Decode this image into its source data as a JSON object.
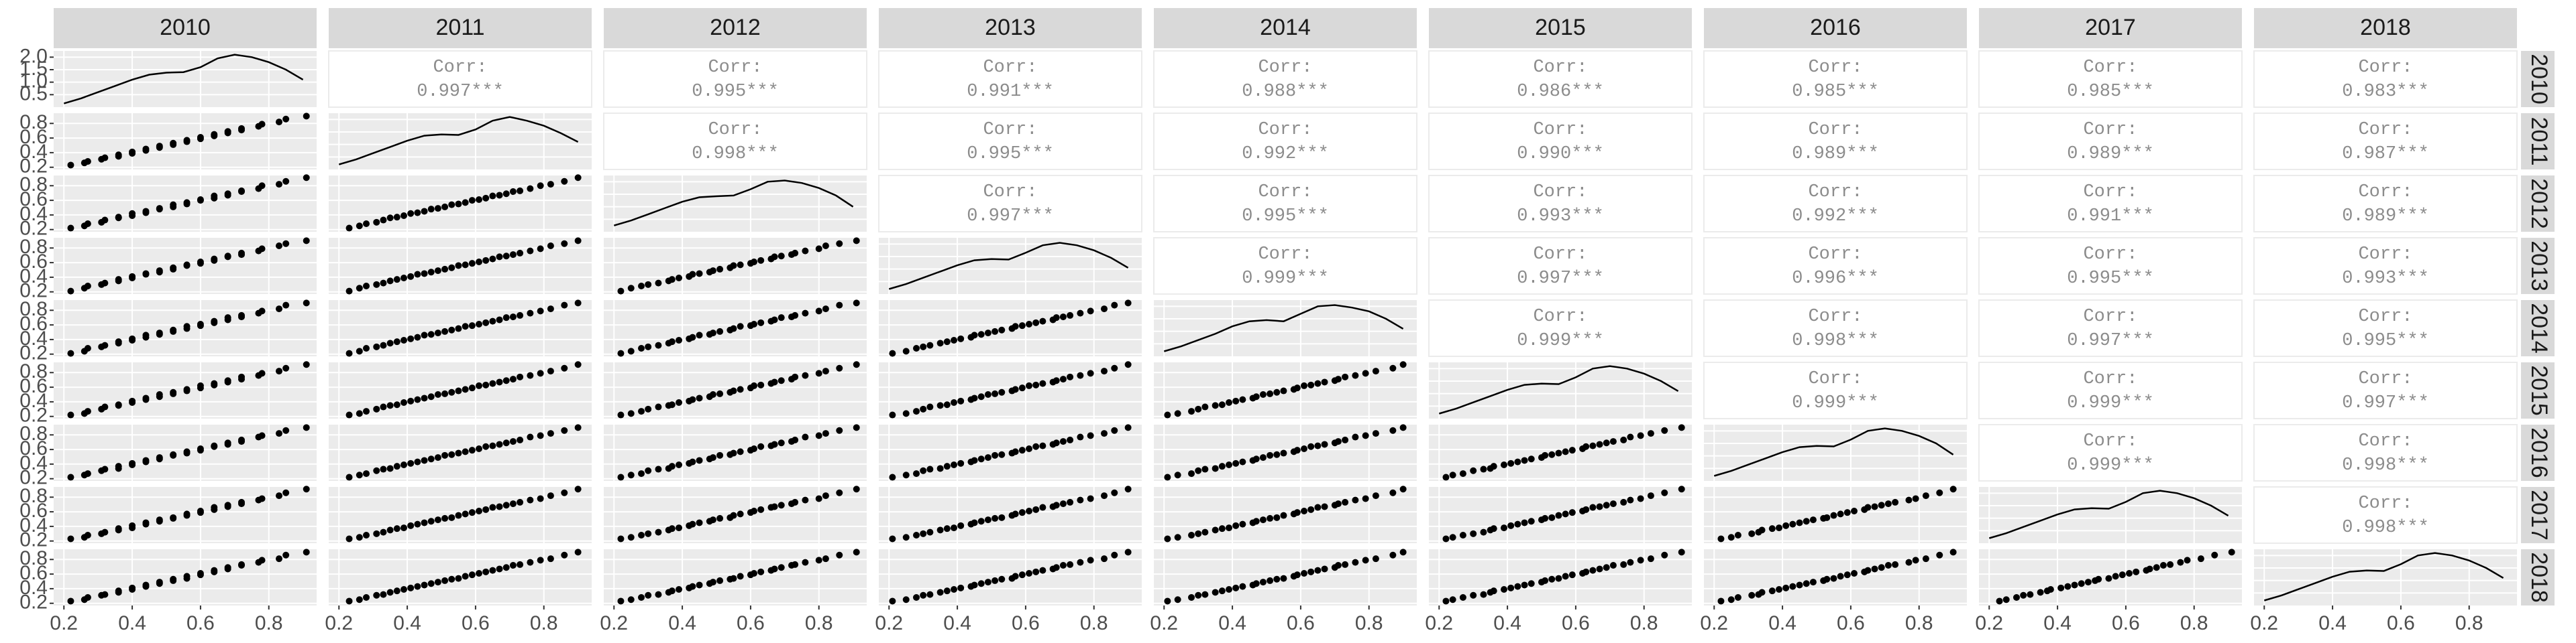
{
  "chart_data": {
    "type": "scatter_matrix",
    "series": [
      {
        "name": "2010",
        "values": [
          0.22,
          0.26,
          0.27,
          0.31,
          0.32,
          0.36,
          0.36,
          0.4,
          0.4,
          0.44,
          0.44,
          0.48,
          0.48,
          0.52,
          0.52,
          0.56,
          0.56,
          0.6,
          0.6,
          0.64,
          0.64,
          0.68,
          0.68,
          0.72,
          0.72,
          0.77,
          0.78,
          0.83,
          0.85,
          0.91
        ],
        "density": [
          0.15,
          0.35,
          0.6,
          0.85,
          1.1,
          1.3,
          1.38,
          1.4,
          1.6,
          1.95,
          2.1,
          2.0,
          1.8,
          1.5,
          1.1
        ]
      },
      {
        "name": "2011",
        "values": [
          0.23,
          0.26,
          0.28,
          0.31,
          0.33,
          0.35,
          0.37,
          0.39,
          0.41,
          0.43,
          0.45,
          0.47,
          0.49,
          0.51,
          0.53,
          0.55,
          0.57,
          0.59,
          0.61,
          0.63,
          0.65,
          0.67,
          0.69,
          0.71,
          0.73,
          0.76,
          0.79,
          0.82,
          0.86,
          0.9
        ],
        "density": [
          0.2,
          0.4,
          0.65,
          0.9,
          1.15,
          1.35,
          1.4,
          1.38,
          1.6,
          1.95,
          2.1,
          1.95,
          1.75,
          1.45,
          1.1
        ]
      },
      {
        "name": "2012",
        "values": [
          0.22,
          0.25,
          0.28,
          0.3,
          0.33,
          0.36,
          0.37,
          0.39,
          0.42,
          0.43,
          0.45,
          0.48,
          0.49,
          0.51,
          0.54,
          0.55,
          0.57,
          0.6,
          0.61,
          0.63,
          0.66,
          0.67,
          0.69,
          0.72,
          0.73,
          0.76,
          0.8,
          0.82,
          0.86,
          0.91
        ],
        "density": [
          0.25,
          0.45,
          0.7,
          0.95,
          1.2,
          1.38,
          1.42,
          1.45,
          1.7,
          2.0,
          2.05,
          1.95,
          1.75,
          1.45,
          1.0
        ]
      },
      {
        "name": "2013",
        "values": [
          0.21,
          0.25,
          0.28,
          0.3,
          0.32,
          0.35,
          0.37,
          0.39,
          0.41,
          0.44,
          0.45,
          0.47,
          0.49,
          0.51,
          0.53,
          0.56,
          0.57,
          0.59,
          0.61,
          0.63,
          0.65,
          0.68,
          0.69,
          0.71,
          0.73,
          0.76,
          0.79,
          0.83,
          0.86,
          0.9
        ],
        "density": [
          0.2,
          0.4,
          0.65,
          0.9,
          1.15,
          1.35,
          1.4,
          1.38,
          1.65,
          1.95,
          2.05,
          1.95,
          1.75,
          1.45,
          1.05
        ]
      },
      {
        "name": "2014",
        "values": [
          0.21,
          0.24,
          0.28,
          0.3,
          0.32,
          0.35,
          0.37,
          0.39,
          0.41,
          0.43,
          0.46,
          0.47,
          0.49,
          0.51,
          0.53,
          0.55,
          0.58,
          0.59,
          0.61,
          0.63,
          0.65,
          0.67,
          0.7,
          0.71,
          0.73,
          0.76,
          0.79,
          0.82,
          0.87,
          0.9
        ],
        "density": [
          0.2,
          0.4,
          0.65,
          0.9,
          1.2,
          1.4,
          1.45,
          1.4,
          1.7,
          2.0,
          2.05,
          1.95,
          1.8,
          1.5,
          1.1
        ]
      },
      {
        "name": "2015",
        "values": [
          0.22,
          0.24,
          0.27,
          0.3,
          0.33,
          0.35,
          0.36,
          0.39,
          0.41,
          0.43,
          0.45,
          0.47,
          0.5,
          0.51,
          0.53,
          0.55,
          0.57,
          0.59,
          0.62,
          0.63,
          0.65,
          0.67,
          0.69,
          0.71,
          0.74,
          0.76,
          0.79,
          0.82,
          0.86,
          0.91
        ],
        "density": [
          0.2,
          0.4,
          0.65,
          0.9,
          1.15,
          1.35,
          1.4,
          1.38,
          1.65,
          2.0,
          2.1,
          2.0,
          1.8,
          1.5,
          1.1
        ]
      },
      {
        "name": "2016",
        "values": [
          0.22,
          0.25,
          0.27,
          0.31,
          0.33,
          0.34,
          0.37,
          0.39,
          0.41,
          0.43,
          0.45,
          0.47,
          0.49,
          0.52,
          0.53,
          0.55,
          0.57,
          0.59,
          0.61,
          0.64,
          0.65,
          0.67,
          0.69,
          0.71,
          0.73,
          0.77,
          0.79,
          0.82,
          0.86,
          0.9
        ],
        "density": [
          0.2,
          0.4,
          0.65,
          0.9,
          1.15,
          1.35,
          1.4,
          1.38,
          1.65,
          2.0,
          2.1,
          2.0,
          1.8,
          1.5,
          1.05
        ]
      },
      {
        "name": "2017",
        "values": [
          0.23,
          0.25,
          0.28,
          0.3,
          0.32,
          0.35,
          0.37,
          0.38,
          0.41,
          0.43,
          0.45,
          0.47,
          0.49,
          0.51,
          0.52,
          0.55,
          0.57,
          0.59,
          0.61,
          0.63,
          0.66,
          0.67,
          0.69,
          0.71,
          0.73,
          0.76,
          0.78,
          0.82,
          0.86,
          0.91
        ],
        "density": [
          0.2,
          0.4,
          0.65,
          0.9,
          1.15,
          1.35,
          1.4,
          1.38,
          1.65,
          2.0,
          2.1,
          2.0,
          1.8,
          1.5,
          1.1
        ]
      },
      {
        "name": "2018",
        "values": [
          0.23,
          0.25,
          0.28,
          0.31,
          0.32,
          0.35,
          0.37,
          0.39,
          0.41,
          0.43,
          0.45,
          0.47,
          0.49,
          0.51,
          0.53,
          0.54,
          0.57,
          0.59,
          0.61,
          0.63,
          0.65,
          0.67,
          0.69,
          0.72,
          0.73,
          0.76,
          0.79,
          0.81,
          0.86,
          0.9
        ],
        "density": [
          0.2,
          0.4,
          0.65,
          0.9,
          1.15,
          1.35,
          1.4,
          1.38,
          1.65,
          2.0,
          2.1,
          2.0,
          1.8,
          1.5,
          1.1
        ]
      }
    ],
    "density_x": [
      0.2,
      0.25,
      0.3,
      0.35,
      0.4,
      0.45,
      0.5,
      0.55,
      0.6,
      0.65,
      0.7,
      0.75,
      0.8,
      0.85,
      0.9
    ],
    "xlim": [
      0.17,
      0.94
    ],
    "xticks": [
      {
        "value": 0.2,
        "label": "0.2"
      },
      {
        "value": 0.4,
        "label": "0.4"
      },
      {
        "value": 0.6,
        "label": "0.6"
      },
      {
        "value": 0.8,
        "label": "0.8"
      }
    ],
    "ylim": [
      0.17,
      0.94
    ],
    "yticks": [
      {
        "value": 0.2,
        "label": "0.2"
      },
      {
        "value": 0.4,
        "label": "0.4"
      },
      {
        "value": 0.6,
        "label": "0.6"
      },
      {
        "value": 0.8,
        "label": "0.8"
      }
    ],
    "density_ylim": [
      0,
      2.25
    ],
    "density_yticks": [
      {
        "value": 0.5,
        "label": "0.5"
      },
      {
        "value": 1,
        "label": "1.0"
      },
      {
        "value": 1.5,
        "label": "1.5"
      },
      {
        "value": 2,
        "label": "2.0"
      }
    ],
    "grid": true,
    "color": "#000000",
    "corr_title": "Corr:",
    "correlations": {
      "values": [
        [
          0.997,
          0.995,
          0.991,
          0.988,
          0.986,
          0.985,
          0.985,
          0.983
        ],
        [
          0.998,
          0.995,
          0.992,
          0.99,
          0.989,
          0.989,
          0.987
        ],
        [
          0.997,
          0.995,
          0.993,
          0.992,
          0.991,
          0.989
        ],
        [
          0.999,
          0.997,
          0.996,
          0.995,
          0.993
        ],
        [
          0.999,
          0.998,
          0.997,
          0.995
        ],
        [
          0.999,
          0.999,
          0.997
        ],
        [
          0.999,
          0.998
        ],
        [
          0.998
        ]
      ],
      "value_labels": [
        [
          "0.997***",
          "0.995***",
          "0.991***",
          "0.988***",
          "0.986***",
          "0.985***",
          "0.985***",
          "0.983***"
        ],
        [
          "0.998***",
          "0.995***",
          "0.992***",
          "0.990***",
          "0.989***",
          "0.989***",
          "0.987***"
        ],
        [
          "0.997***",
          "0.995***",
          "0.993***",
          "0.992***",
          "0.991***",
          "0.989***"
        ],
        [
          "0.999***",
          "0.997***",
          "0.996***",
          "0.995***",
          "0.993***"
        ],
        [
          "0.999***",
          "0.998***",
          "0.997***",
          "0.995***"
        ],
        [
          "0.999***",
          "0.999***",
          "0.997***"
        ],
        [
          "0.999***",
          "0.998***"
        ],
        [
          "0.998***"
        ]
      ]
    }
  }
}
